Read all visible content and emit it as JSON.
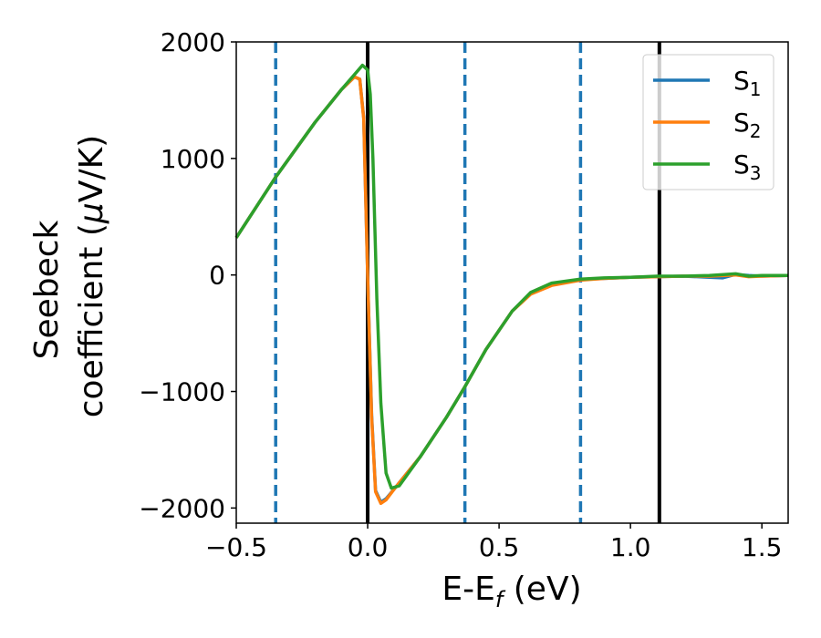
{
  "chart_data": {
    "type": "line",
    "title": "",
    "xlabel": {
      "main": "E-E",
      "sub": "f",
      "rest": " (eV)"
    },
    "ylabel": {
      "line1": "Seebeck",
      "line2_text": "coefficient  (",
      "line2_mu": "μ",
      "line2_rest": "V/K)"
    },
    "xlim": [
      -0.5,
      1.6
    ],
    "ylim": [
      -2130,
      2000
    ],
    "xticks": [
      -0.5,
      0.0,
      0.5,
      1.0,
      1.5
    ],
    "xtick_labels": [
      "−0.5",
      "0.0",
      "0.5",
      "1.0",
      "1.5"
    ],
    "yticks": [
      -2000,
      -1000,
      0,
      1000,
      2000
    ],
    "ytick_labels": [
      "−2000",
      "−1000",
      "0",
      "1000",
      "2000"
    ],
    "grid": false,
    "legend_position": "top-right",
    "vertical_lines": [
      {
        "x": -0.35,
        "style": "dashed",
        "color": "#1f77b4"
      },
      {
        "x": 0.0,
        "style": "solid",
        "color": "#000000"
      },
      {
        "x": 0.37,
        "style": "dashed",
        "color": "#1f77b4"
      },
      {
        "x": 0.81,
        "style": "dashed",
        "color": "#1f77b4"
      },
      {
        "x": 1.11,
        "style": "solid",
        "color": "#000000"
      }
    ],
    "series": [
      {
        "name": "S",
        "sub": "1",
        "color": "#1f77b4",
        "points": [
          [
            -0.5,
            320
          ],
          [
            -0.35,
            840
          ],
          [
            -0.2,
            1310
          ],
          [
            -0.1,
            1590
          ],
          [
            -0.05,
            1700
          ],
          [
            -0.03,
            1680
          ],
          [
            -0.015,
            1350
          ],
          [
            0.0,
            0
          ],
          [
            0.015,
            -1200
          ],
          [
            0.03,
            -1850
          ],
          [
            0.05,
            -1950
          ],
          [
            0.07,
            -1920
          ],
          [
            0.1,
            -1840
          ],
          [
            0.2,
            -1560
          ],
          [
            0.3,
            -1220
          ],
          [
            0.37,
            -960
          ],
          [
            0.45,
            -640
          ],
          [
            0.55,
            -310
          ],
          [
            0.62,
            -160
          ],
          [
            0.7,
            -80
          ],
          [
            0.81,
            -40
          ],
          [
            0.9,
            -30
          ],
          [
            1.0,
            -20
          ],
          [
            1.1,
            -15
          ],
          [
            1.2,
            -10
          ],
          [
            1.3,
            -20
          ],
          [
            1.35,
            -25
          ],
          [
            1.4,
            5
          ],
          [
            1.45,
            -5
          ],
          [
            1.5,
            -10
          ],
          [
            1.6,
            -5
          ]
        ]
      },
      {
        "name": "S",
        "sub": "2",
        "color": "#ff7f0e",
        "points": [
          [
            -0.5,
            320
          ],
          [
            -0.35,
            840
          ],
          [
            -0.2,
            1310
          ],
          [
            -0.1,
            1590
          ],
          [
            -0.05,
            1700
          ],
          [
            -0.03,
            1680
          ],
          [
            -0.015,
            1340
          ],
          [
            0.0,
            0
          ],
          [
            0.015,
            -1220
          ],
          [
            0.03,
            -1860
          ],
          [
            0.05,
            -1960
          ],
          [
            0.07,
            -1930
          ],
          [
            0.1,
            -1840
          ],
          [
            0.2,
            -1560
          ],
          [
            0.3,
            -1220
          ],
          [
            0.37,
            -960
          ],
          [
            0.45,
            -640
          ],
          [
            0.55,
            -310
          ],
          [
            0.62,
            -165
          ],
          [
            0.7,
            -90
          ],
          [
            0.81,
            -45
          ],
          [
            0.9,
            -30
          ],
          [
            1.0,
            -20
          ],
          [
            1.1,
            -15
          ],
          [
            1.2,
            -10
          ],
          [
            1.3,
            -10
          ],
          [
            1.4,
            0
          ],
          [
            1.45,
            -15
          ],
          [
            1.5,
            -10
          ],
          [
            1.6,
            -5
          ]
        ]
      },
      {
        "name": "S",
        "sub": "3",
        "color": "#2ca02c",
        "points": [
          [
            -0.5,
            320
          ],
          [
            -0.35,
            840
          ],
          [
            -0.2,
            1310
          ],
          [
            -0.1,
            1590
          ],
          [
            -0.05,
            1720
          ],
          [
            -0.02,
            1800
          ],
          [
            0.0,
            1760
          ],
          [
            0.01,
            1550
          ],
          [
            0.02,
            1000
          ],
          [
            0.035,
            -200
          ],
          [
            0.05,
            -1100
          ],
          [
            0.07,
            -1700
          ],
          [
            0.09,
            -1830
          ],
          [
            0.12,
            -1810
          ],
          [
            0.2,
            -1560
          ],
          [
            0.3,
            -1220
          ],
          [
            0.37,
            -960
          ],
          [
            0.45,
            -640
          ],
          [
            0.55,
            -310
          ],
          [
            0.62,
            -150
          ],
          [
            0.7,
            -70
          ],
          [
            0.81,
            -35
          ],
          [
            0.9,
            -25
          ],
          [
            1.0,
            -20
          ],
          [
            1.1,
            -10
          ],
          [
            1.2,
            -10
          ],
          [
            1.3,
            -5
          ],
          [
            1.4,
            10
          ],
          [
            1.45,
            -10
          ],
          [
            1.5,
            -5
          ],
          [
            1.6,
            -5
          ]
        ]
      }
    ]
  }
}
